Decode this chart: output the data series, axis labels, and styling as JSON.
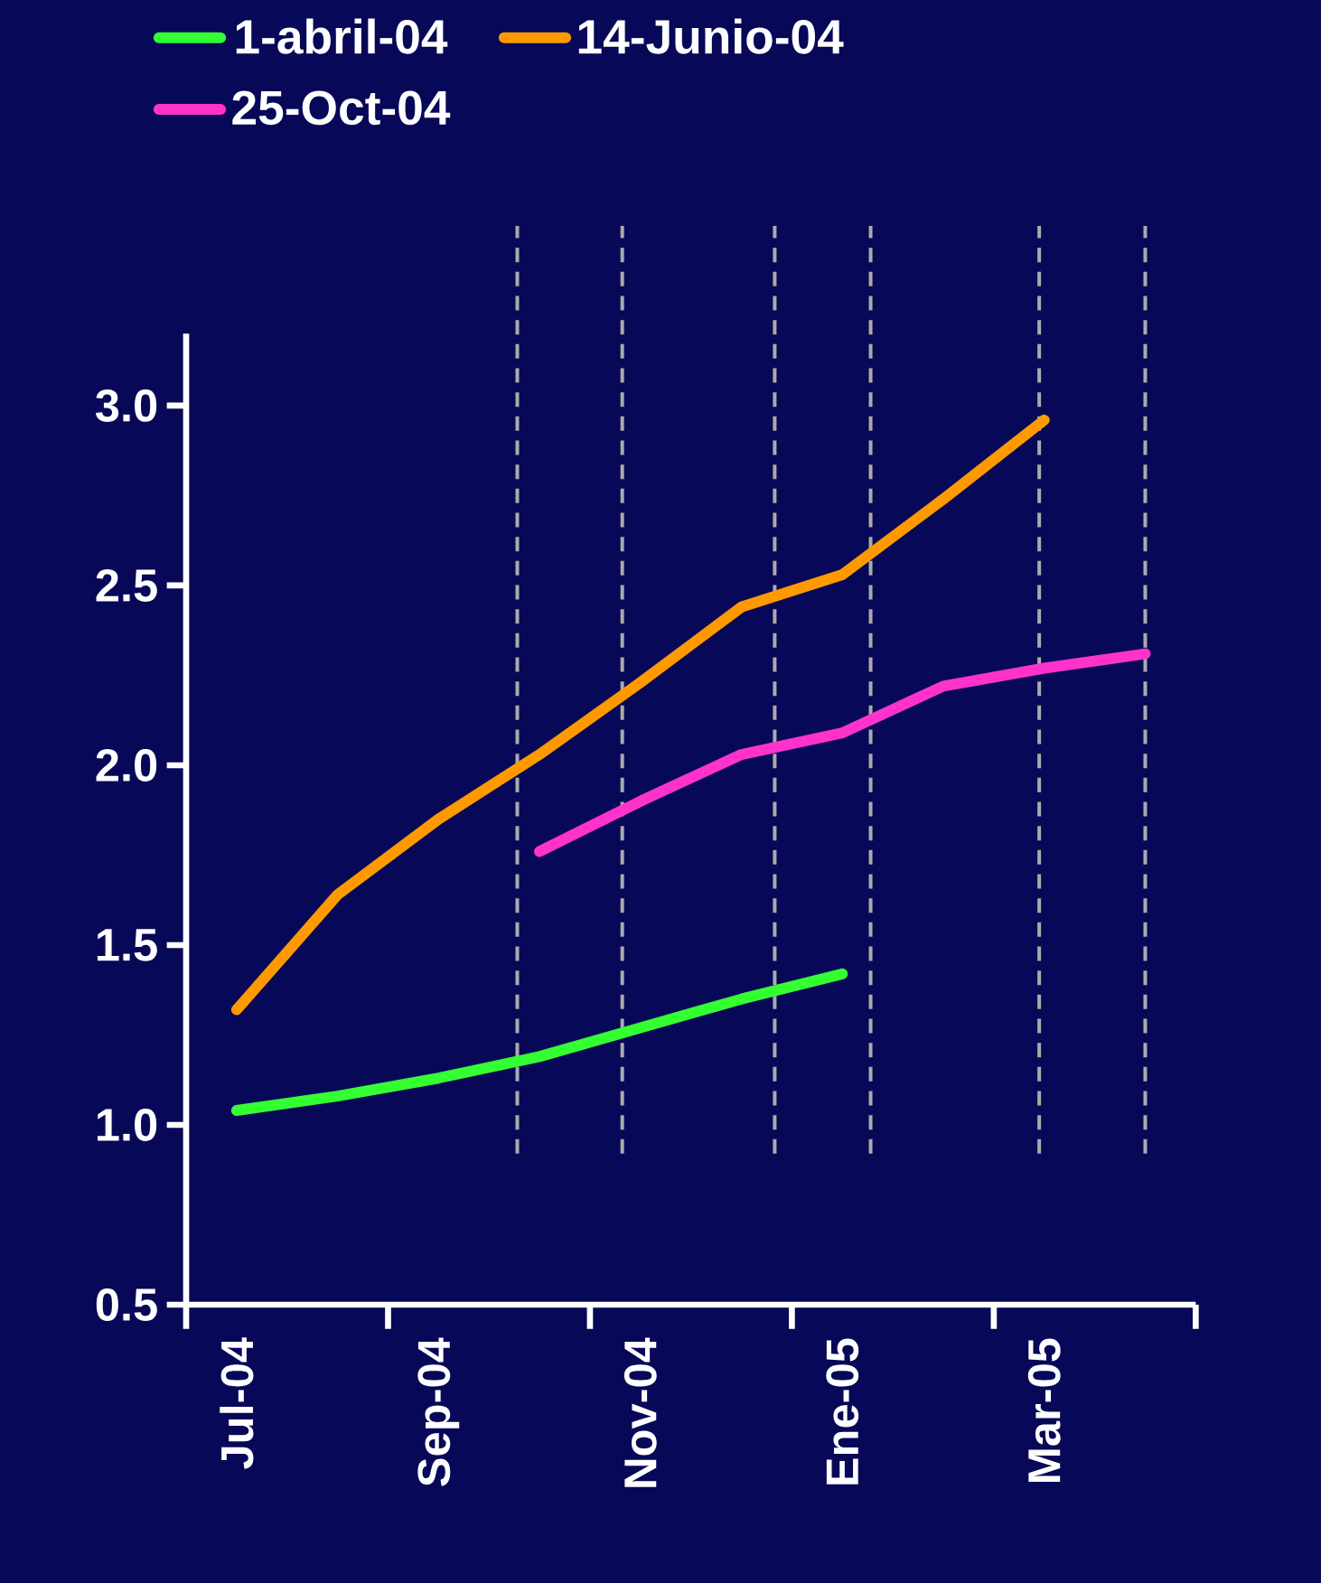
{
  "chart_data": {
    "type": "line",
    "categories": [
      "Jul-04",
      null,
      "Sep-04",
      null,
      "Nov-04",
      null,
      "Ene-05",
      null,
      "Mar-05",
      null
    ],
    "series": [
      {
        "name": "1-abril-04",
        "color": "#33ff33",
        "values": [
          1.04,
          1.08,
          1.13,
          1.19,
          1.27,
          1.35,
          1.42,
          null,
          null,
          null
        ]
      },
      {
        "name": "14-Junio-04",
        "color": "#ff9900",
        "values": [
          1.32,
          1.64,
          1.85,
          2.03,
          2.23,
          2.44,
          2.53,
          2.74,
          2.96,
          null
        ]
      },
      {
        "name": "25-Oct-04",
        "color": "#ff33cc",
        "values": [
          null,
          null,
          null,
          1.76,
          1.9,
          2.03,
          2.09,
          2.22,
          2.27,
          2.31
        ]
      }
    ],
    "ylim": [
      0.5,
      3.2
    ],
    "yticks": [
      0.5,
      {
        "value": 1,
        "label": "1.0"
      },
      1.5,
      {
        "value": 2,
        "label": "2.0"
      },
      2.5,
      {
        "value": 3,
        "label": "3.0"
      }
    ],
    "grid": "x",
    "legend": "top",
    "marker": "none",
    "line_style": "solid"
  }
}
